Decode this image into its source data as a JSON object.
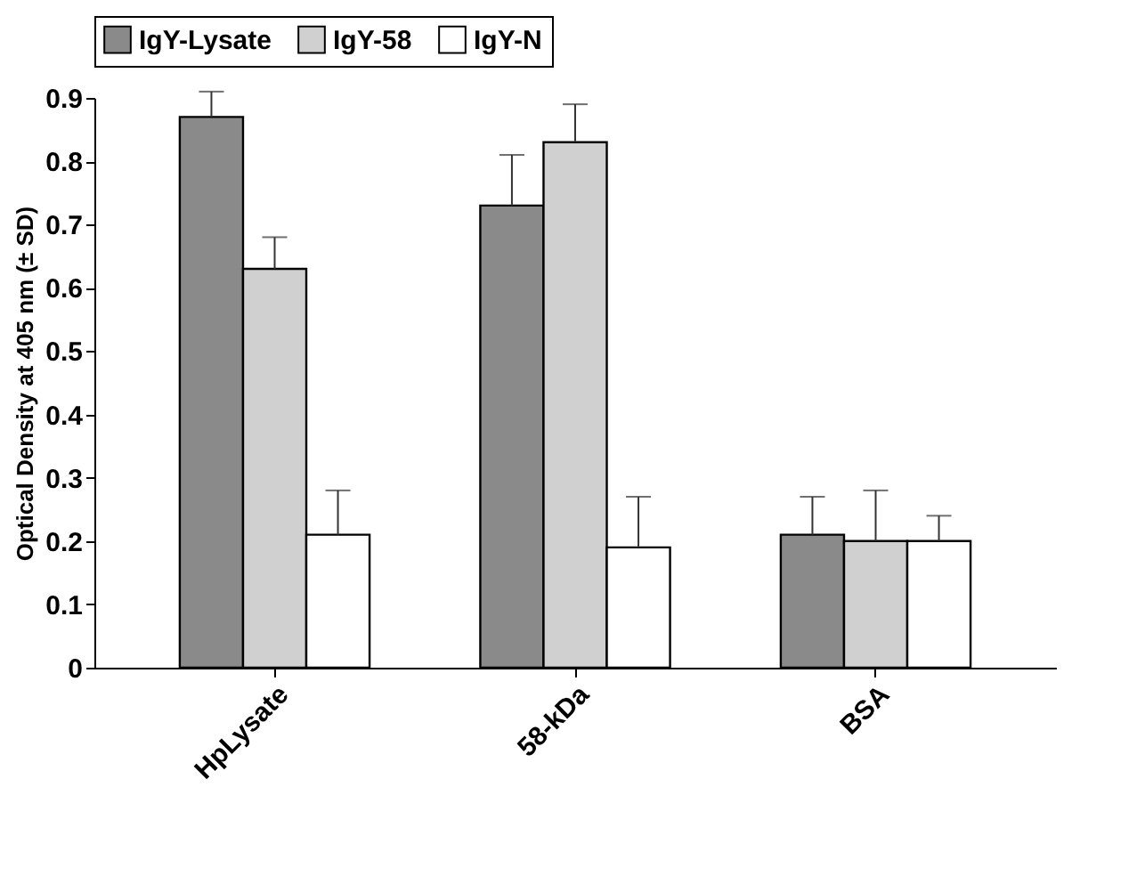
{
  "chart_data": {
    "type": "bar",
    "ylabel": "Optical Density at 405 nm (± SD)",
    "categories": [
      "HpLysate",
      "58-kDa",
      "BSA"
    ],
    "series": [
      {
        "name": "IgY-Lysate",
        "color": "#8a8a8a",
        "values": [
          0.87,
          0.73,
          0.21
        ],
        "errors": [
          [
            0.87,
            0.91
          ],
          [
            0.73,
            0.81
          ],
          [
            0.21,
            0.27
          ]
        ]
      },
      {
        "name": "IgY-58",
        "color": "#d0d0d0",
        "values": [
          0.63,
          0.83,
          0.2
        ],
        "errors": [
          [
            0.63,
            0.68
          ],
          [
            0.83,
            0.89
          ],
          [
            0.2,
            0.28
          ]
        ]
      },
      {
        "name": "IgY-N",
        "color": "#ffffff",
        "values": [
          0.21,
          0.19,
          0.2
        ],
        "errors": [
          [
            0.21,
            0.28
          ],
          [
            0.19,
            0.27
          ],
          [
            0.2,
            0.24
          ]
        ]
      }
    ],
    "ylim": [
      0,
      0.9
    ],
    "yticks": [
      0,
      0.1,
      0.2,
      0.3,
      0.4,
      0.5,
      0.6,
      0.7,
      0.8,
      0.9
    ],
    "grid": false,
    "legend": "top"
  }
}
